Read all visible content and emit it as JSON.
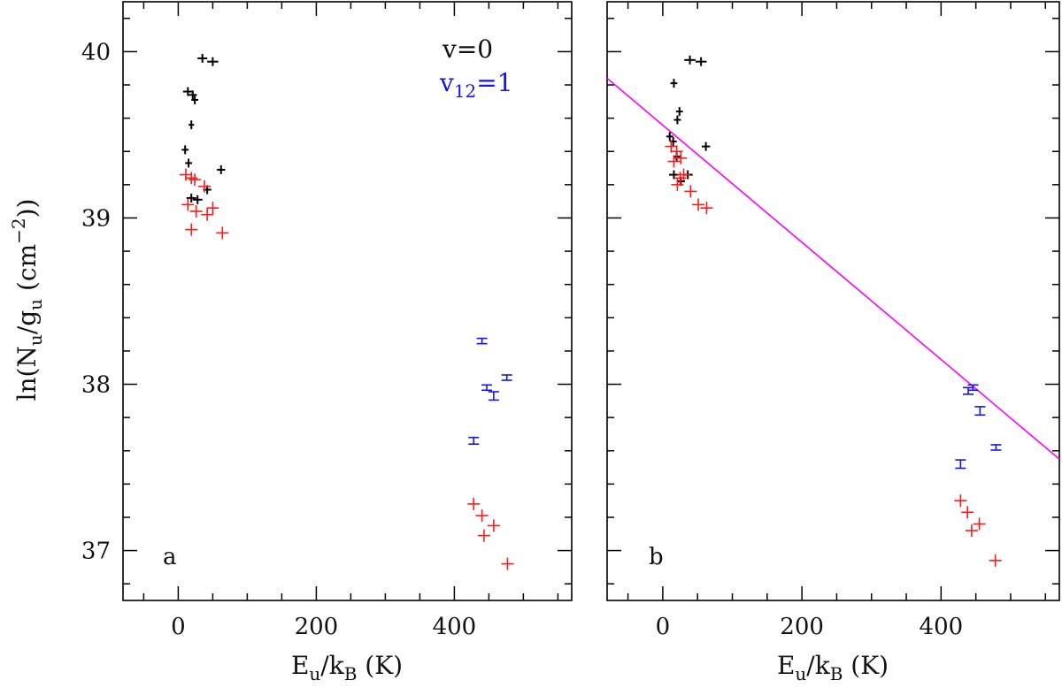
{
  "chart_data": {
    "type": "scatter",
    "ylabel_parts": {
      "pre": "ln(N",
      "sub1": "u",
      "mid": "/g",
      "sub2": "u",
      "post1": " (cm",
      "sup": "−2",
      "post2": "))"
    },
    "xlabel_parts": {
      "pre": "E",
      "sub1": "u",
      "mid": "/k",
      "sub2": "B",
      "post": " (K)"
    },
    "xlim": [
      -80,
      570
    ],
    "ylim": [
      36.7,
      40.3
    ],
    "xticks": [
      0,
      200,
      400
    ],
    "xtick_labels": [
      "0",
      "200",
      "400"
    ],
    "yticks": [
      37,
      38,
      39,
      40
    ],
    "ytick_labels": [
      "37",
      "38",
      "39",
      "40"
    ],
    "legend": {
      "placement": "top-right",
      "v0": "v=0",
      "v12_pre": "v",
      "v12_sub": "12",
      "v12_post": "=1"
    },
    "colors": {
      "v0": "#000000",
      "v12": "#1414e6",
      "red": "#ff1a1a",
      "fit": "#ff00ff",
      "axes": "#000000"
    },
    "panels": [
      {
        "label": "a",
        "series": [
          {
            "color_key": "v0",
            "marker": "cross-errorbar",
            "points": [
              [
                35,
                39.96,
                7
              ],
              [
                50,
                39.94,
                8
              ],
              [
                14,
                39.76,
                7
              ],
              [
                21,
                39.74,
                6
              ],
              [
                24,
                39.71,
                5
              ],
              [
                19,
                39.56,
                4
              ],
              [
                10,
                39.41,
                5
              ],
              [
                15,
                39.33,
                5
              ],
              [
                62,
                39.29,
                6
              ],
              [
                42,
                39.17,
                6
              ],
              [
                19,
                39.12,
                7
              ],
              [
                28,
                39.11,
                7
              ]
            ]
          },
          {
            "color_key": "red",
            "marker": "plus",
            "points": [
              [
                11,
                39.26
              ],
              [
                19,
                39.24
              ],
              [
                24,
                39.23
              ],
              [
                38,
                39.19
              ],
              [
                14,
                39.08
              ],
              [
                50,
                39.06
              ],
              [
                26,
                39.04
              ],
              [
                42,
                39.02
              ],
              [
                19,
                38.93
              ],
              [
                64,
                38.91
              ]
            ]
          },
          {
            "color_key": "v12",
            "marker": "errorbar",
            "points": [
              [
                440,
                38.26,
                0.015
              ],
              [
                476,
                38.04,
                0.015
              ],
              [
                447,
                37.98,
                0.015
              ],
              [
                457,
                37.93,
                0.025
              ],
              [
                428,
                37.66,
                0.02
              ]
            ]
          },
          {
            "color_key": "red",
            "marker": "plus",
            "points": [
              [
                428,
                37.28
              ],
              [
                440,
                37.21
              ],
              [
                457,
                37.15
              ],
              [
                443,
                37.09
              ],
              [
                477,
                36.92
              ]
            ]
          }
        ]
      },
      {
        "label": "b",
        "series": [
          {
            "color_key": "v0",
            "marker": "cross-errorbar",
            "points": [
              [
                39,
                39.95,
                8
              ],
              [
                55,
                39.94,
                8
              ],
              [
                16,
                39.81,
                5
              ],
              [
                24,
                39.64,
                5
              ],
              [
                21,
                39.59,
                5
              ],
              [
                10,
                39.49,
                5
              ],
              [
                15,
                39.46,
                5
              ],
              [
                62,
                39.43,
                6
              ],
              [
                20,
                39.37,
                5
              ],
              [
                36,
                39.26,
                7
              ],
              [
                16,
                39.26,
                7
              ],
              [
                26,
                39.22,
                6
              ]
            ]
          },
          {
            "color_key": "red",
            "marker": "plus",
            "points": [
              [
                12,
                39.43
              ],
              [
                20,
                39.4
              ],
              [
                26,
                39.36
              ],
              [
                16,
                39.34
              ],
              [
                30,
                39.26
              ],
              [
                25,
                39.24
              ],
              [
                21,
                39.2
              ],
              [
                40,
                39.16
              ],
              [
                51,
                39.08
              ],
              [
                63,
                39.06
              ]
            ]
          },
          {
            "color_key": "v12",
            "marker": "errorbar",
            "points": [
              [
                446,
                37.98,
                0.015
              ],
              [
                439,
                37.96,
                0.02
              ],
              [
                456,
                37.84,
                0.025
              ],
              [
                479,
                37.62,
                0.015
              ],
              [
                428,
                37.52,
                0.025
              ]
            ]
          },
          {
            "color_key": "red",
            "marker": "plus",
            "points": [
              [
                428,
                37.3
              ],
              [
                438,
                37.23
              ],
              [
                455,
                37.16
              ],
              [
                444,
                37.12
              ],
              [
                478,
                36.94
              ]
            ]
          }
        ],
        "fit_line": {
          "x": [
            -80,
            570
          ],
          "y": [
            39.84,
            37.55
          ]
        }
      }
    ]
  }
}
